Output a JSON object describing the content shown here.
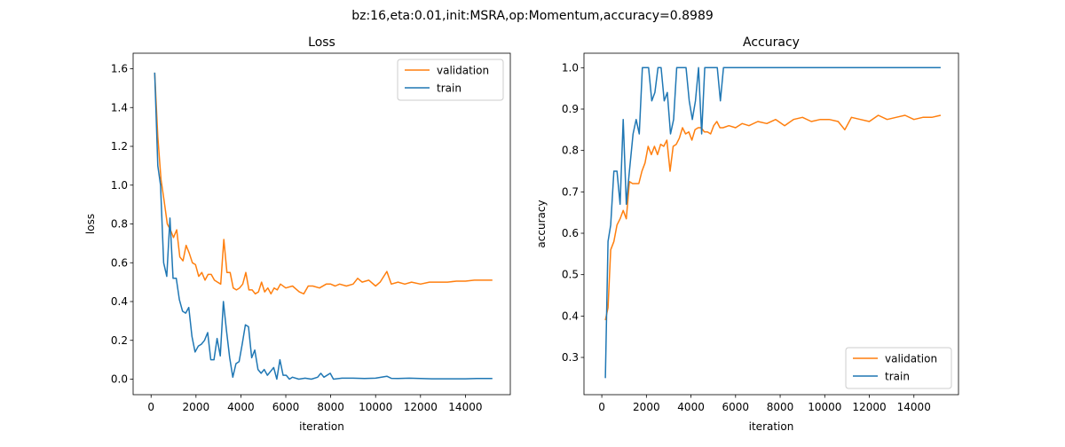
{
  "suptitle": "bz:16,eta:0.01,init:MSRA,op:Momentum,accuracy=0.8989",
  "chart_data": [
    {
      "type": "line",
      "title": "Loss",
      "xlabel": "iteration",
      "ylabel": "loss",
      "xlim": [
        -800,
        16000
      ],
      "ylim": [
        -0.08,
        1.68
      ],
      "xticks": [
        0,
        2000,
        4000,
        6000,
        8000,
        10000,
        12000,
        14000
      ],
      "yticks": [
        0.0,
        0.2,
        0.4,
        0.6,
        0.8,
        1.0,
        1.2,
        1.4,
        1.6
      ],
      "ytick_labels": [
        "0.0",
        "0.2",
        "0.4",
        "0.6",
        "0.8",
        "1.0",
        "1.2",
        "1.4",
        "1.6"
      ],
      "legend": "top-right",
      "series": [
        {
          "name": "validation",
          "color": "#ff7f0e",
          "x": [
            160,
            300,
            440,
            580,
            720,
            860,
            1000,
            1140,
            1280,
            1420,
            1560,
            1700,
            1840,
            1980,
            2120,
            2260,
            2400,
            2540,
            2680,
            2820,
            2960,
            3100,
            3240,
            3380,
            3520,
            3660,
            3800,
            3940,
            4080,
            4220,
            4360,
            4500,
            4640,
            4780,
            4920,
            5060,
            5200,
            5340,
            5480,
            5620,
            5760,
            6000,
            6300,
            6600,
            6800,
            7000,
            7200,
            7500,
            7800,
            8000,
            8200,
            8400,
            8700,
            9000,
            9200,
            9400,
            9700,
            10000,
            10200,
            10500,
            10700,
            11000,
            11300,
            11600,
            12000,
            12400,
            12800,
            13200,
            13600,
            14000,
            14400,
            14800,
            15200
          ],
          "y": [
            1.58,
            1.25,
            1.03,
            0.92,
            0.8,
            0.77,
            0.73,
            0.77,
            0.63,
            0.61,
            0.69,
            0.65,
            0.6,
            0.59,
            0.53,
            0.55,
            0.51,
            0.54,
            0.54,
            0.51,
            0.5,
            0.49,
            0.72,
            0.55,
            0.55,
            0.47,
            0.46,
            0.47,
            0.49,
            0.55,
            0.46,
            0.46,
            0.44,
            0.45,
            0.5,
            0.45,
            0.47,
            0.44,
            0.47,
            0.46,
            0.49,
            0.47,
            0.48,
            0.45,
            0.44,
            0.48,
            0.48,
            0.47,
            0.49,
            0.49,
            0.48,
            0.49,
            0.48,
            0.49,
            0.52,
            0.5,
            0.51,
            0.48,
            0.5,
            0.555,
            0.49,
            0.5,
            0.49,
            0.5,
            0.49,
            0.5,
            0.5,
            0.5,
            0.505,
            0.505,
            0.51,
            0.51,
            0.51
          ]
        },
        {
          "name": "train",
          "color": "#1f77b4",
          "x": [
            160,
            300,
            420,
            560,
            700,
            840,
            980,
            1120,
            1260,
            1400,
            1540,
            1680,
            1820,
            1960,
            2100,
            2240,
            2380,
            2520,
            2660,
            2800,
            2940,
            3080,
            3220,
            3360,
            3500,
            3640,
            3780,
            3920,
            4060,
            4200,
            4340,
            4480,
            4620,
            4760,
            4900,
            5040,
            5180,
            5320,
            5460,
            5600,
            5740,
            5880,
            6020,
            6160,
            6300,
            6580,
            6860,
            7140,
            7420,
            7560,
            7700,
            7980,
            8120,
            8500,
            9000,
            9500,
            10000,
            10500,
            10700,
            11000,
            11500,
            12000,
            12500,
            13000,
            13500,
            14000,
            14500,
            15200
          ],
          "y": [
            1.58,
            1.1,
            1.0,
            0.6,
            0.53,
            0.83,
            0.52,
            0.52,
            0.41,
            0.35,
            0.34,
            0.37,
            0.22,
            0.14,
            0.17,
            0.18,
            0.2,
            0.24,
            0.1,
            0.1,
            0.21,
            0.12,
            0.4,
            0.25,
            0.11,
            0.01,
            0.08,
            0.09,
            0.18,
            0.28,
            0.27,
            0.11,
            0.15,
            0.05,
            0.03,
            0.05,
            0.02,
            0.04,
            0.06,
            0.0,
            0.1,
            0.02,
            0.02,
            0.0,
            0.01,
            0.0,
            0.005,
            0.0,
            0.01,
            0.03,
            0.01,
            0.03,
            0.0,
            0.005,
            0.005,
            0.003,
            0.005,
            0.015,
            0.004,
            0.003,
            0.005,
            0.003,
            0.002,
            0.002,
            0.002,
            0.002,
            0.003,
            0.003
          ]
        }
      ]
    },
    {
      "type": "line",
      "title": "Accuracy",
      "xlabel": "iteration",
      "ylabel": "accuracy",
      "xlim": [
        -800,
        16000
      ],
      "ylim": [
        0.21,
        1.035
      ],
      "xticks": [
        0,
        2000,
        4000,
        6000,
        8000,
        10000,
        12000,
        14000
      ],
      "yticks": [
        0.3,
        0.4,
        0.5,
        0.6,
        0.7,
        0.8,
        0.9,
        1.0
      ],
      "ytick_labels": [
        "0.3",
        "0.4",
        "0.5",
        "0.6",
        "0.7",
        "0.8",
        "0.9",
        "1.0"
      ],
      "legend": "bottom-right",
      "series": [
        {
          "name": "validation",
          "color": "#ff7f0e",
          "x": [
            160,
            280,
            400,
            540,
            680,
            820,
            960,
            1100,
            1240,
            1380,
            1520,
            1660,
            1800,
            1940,
            2080,
            2220,
            2360,
            2500,
            2640,
            2780,
            2920,
            3060,
            3200,
            3340,
            3480,
            3620,
            3760,
            3900,
            4040,
            4180,
            4320,
            4460,
            4600,
            4740,
            4880,
            5020,
            5160,
            5300,
            5440,
            5700,
            6000,
            6300,
            6600,
            7000,
            7400,
            7800,
            8200,
            8600,
            9000,
            9400,
            9800,
            10200,
            10600,
            10900,
            11200,
            11600,
            12000,
            12400,
            12800,
            13200,
            13600,
            14000,
            14400,
            14800,
            15200
          ],
          "y": [
            0.39,
            0.42,
            0.56,
            0.58,
            0.62,
            0.635,
            0.655,
            0.635,
            0.725,
            0.72,
            0.72,
            0.72,
            0.75,
            0.77,
            0.81,
            0.79,
            0.81,
            0.79,
            0.815,
            0.81,
            0.825,
            0.75,
            0.81,
            0.815,
            0.83,
            0.855,
            0.84,
            0.845,
            0.825,
            0.85,
            0.855,
            0.855,
            0.845,
            0.845,
            0.84,
            0.86,
            0.87,
            0.855,
            0.855,
            0.86,
            0.855,
            0.865,
            0.86,
            0.87,
            0.865,
            0.875,
            0.86,
            0.875,
            0.88,
            0.87,
            0.875,
            0.875,
            0.87,
            0.85,
            0.88,
            0.875,
            0.87,
            0.885,
            0.875,
            0.88,
            0.885,
            0.875,
            0.88,
            0.88,
            0.885
          ]
        },
        {
          "name": "train",
          "color": "#1f77b4",
          "x": [
            160,
            280,
            400,
            540,
            680,
            820,
            960,
            1100,
            1240,
            1400,
            1540,
            1680,
            1820,
            1960,
            2100,
            2240,
            2380,
            2520,
            2660,
            2800,
            2940,
            3080,
            3220,
            3360,
            3500,
            3640,
            3780,
            3920,
            4060,
            4200,
            4340,
            4480,
            4620,
            4760,
            4900,
            5040,
            5180,
            5320,
            5460,
            15200
          ],
          "y": [
            0.25,
            0.58,
            0.62,
            0.75,
            0.75,
            0.67,
            0.875,
            0.67,
            0.75,
            0.84,
            0.875,
            0.84,
            1.0,
            1.0,
            1.0,
            0.92,
            0.94,
            1.0,
            1.0,
            0.92,
            0.94,
            0.84,
            0.875,
            1.0,
            1.0,
            1.0,
            1.0,
            0.92,
            0.875,
            0.92,
            1.0,
            0.84,
            1.0,
            1.0,
            1.0,
            1.0,
            1.0,
            0.92,
            1.0,
            1.0
          ]
        }
      ]
    }
  ]
}
